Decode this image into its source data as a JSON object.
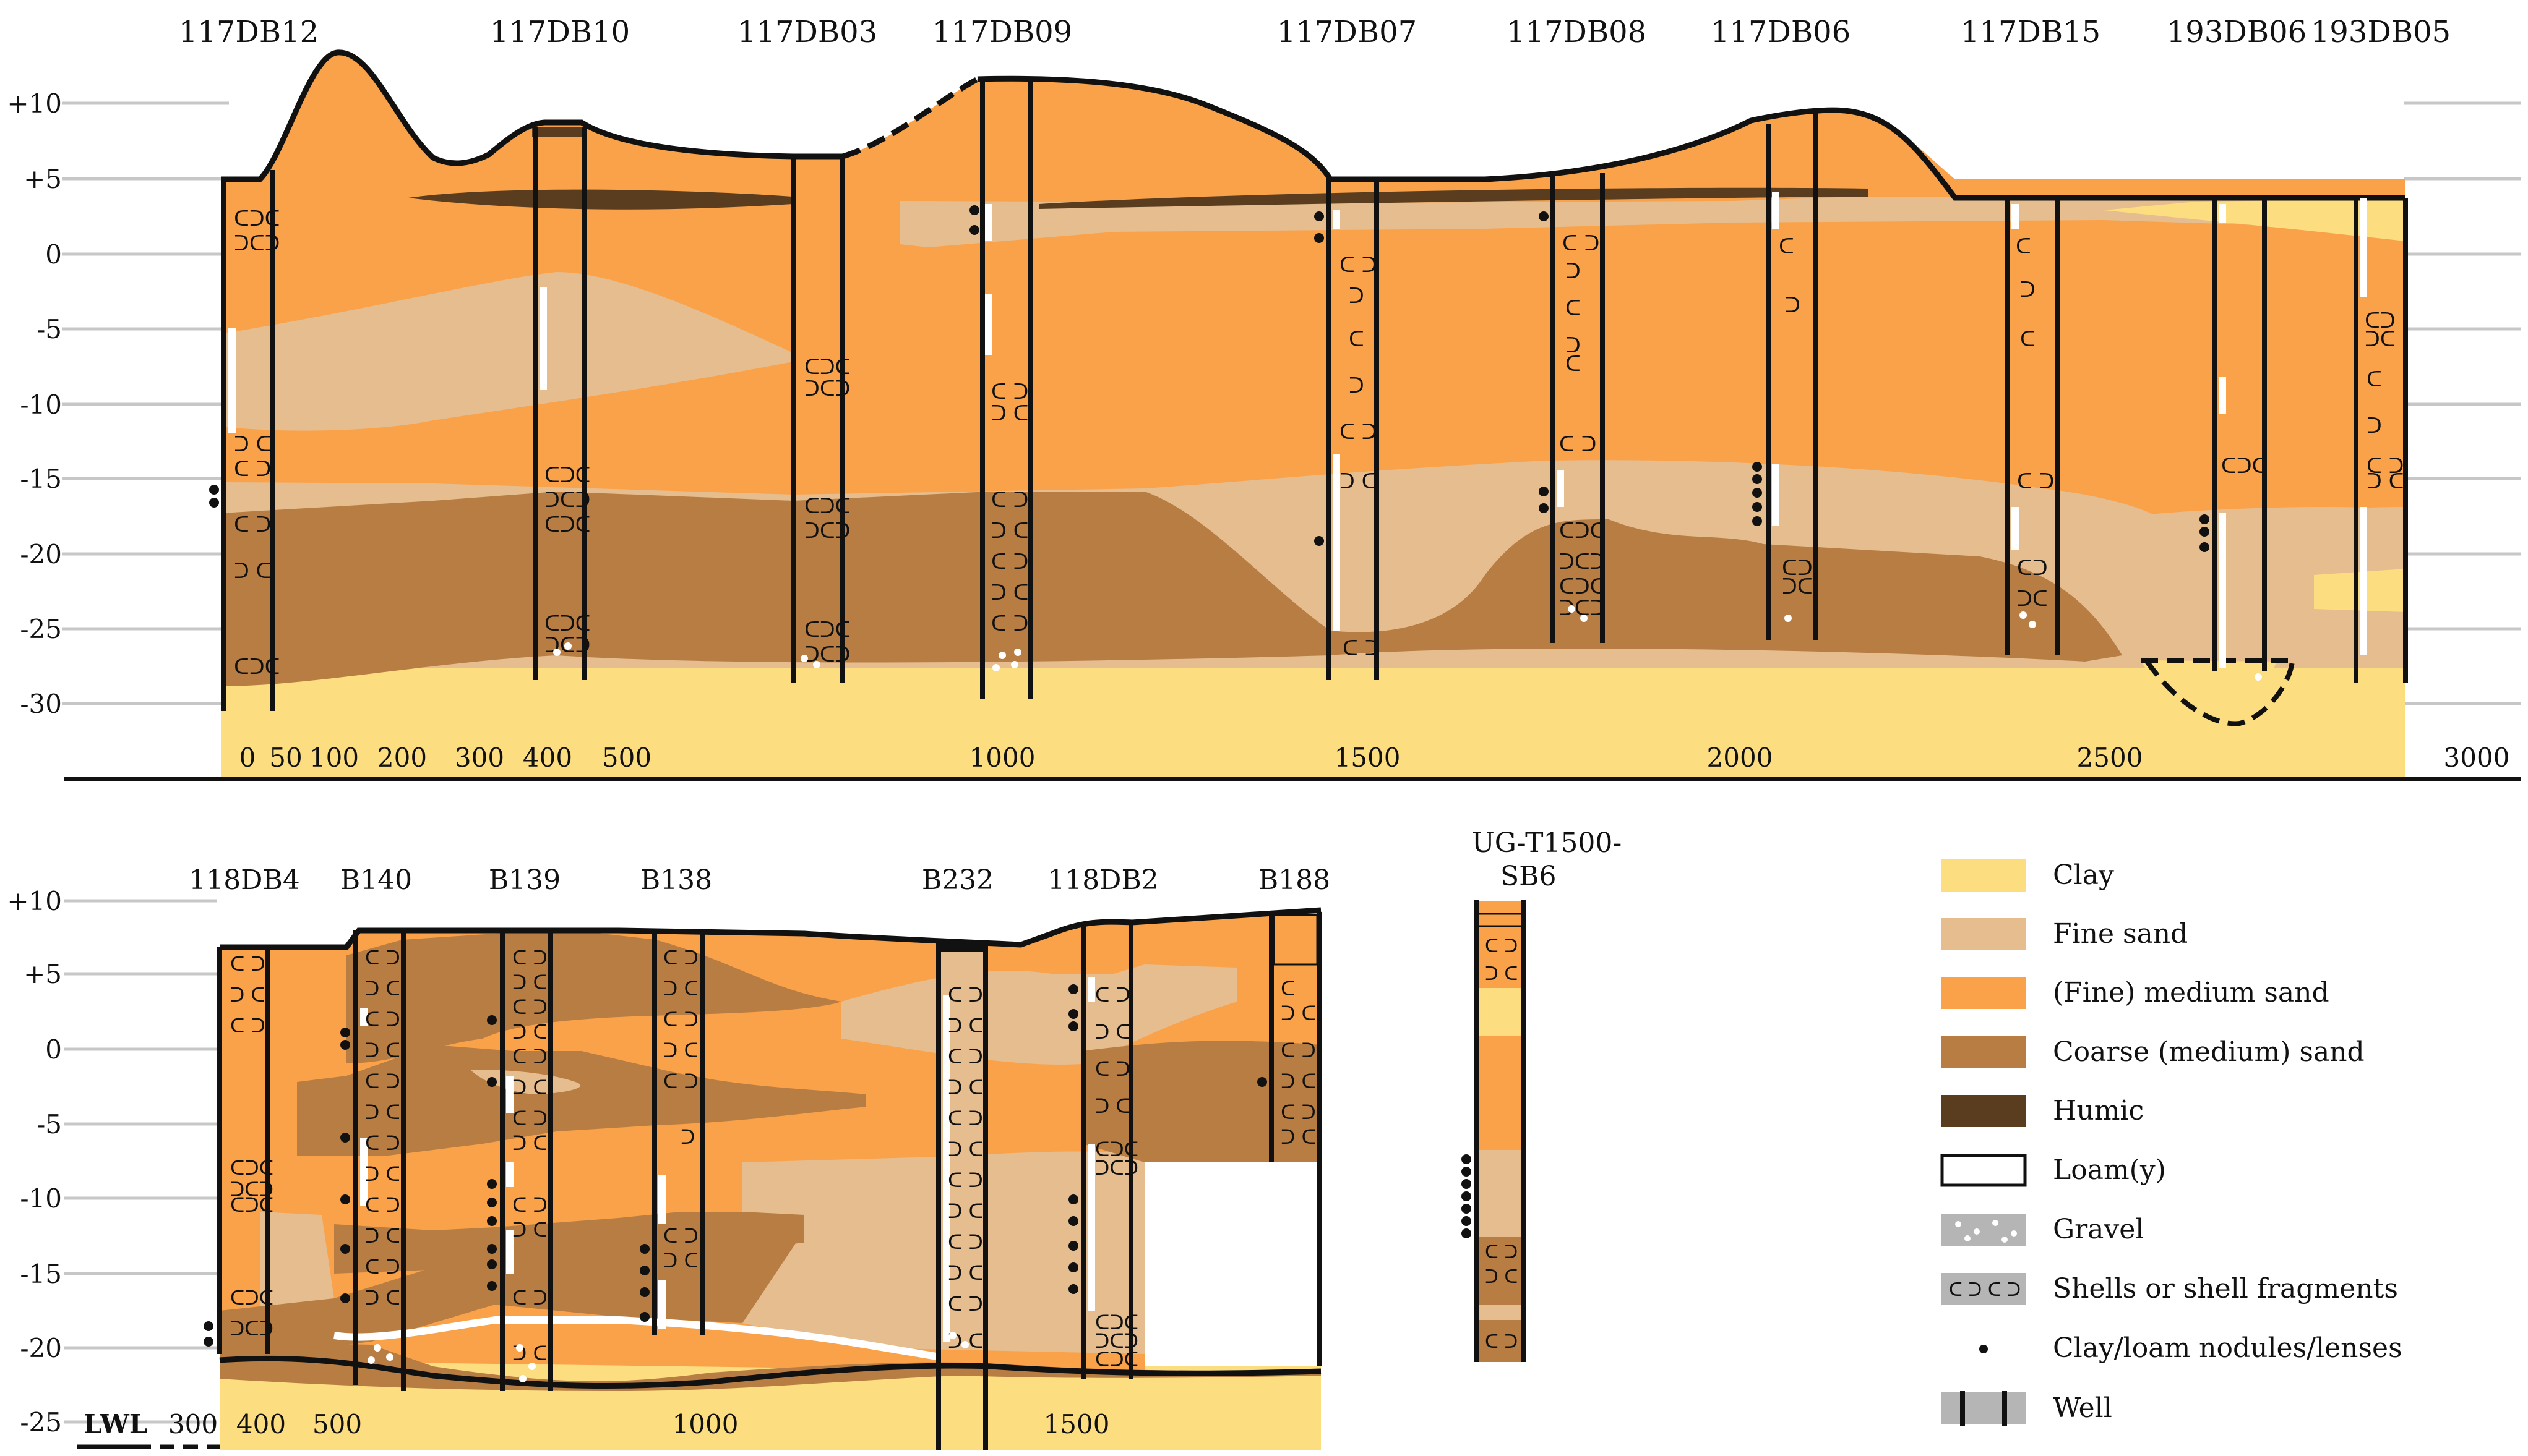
{
  "colors": {
    "clay": "#fcdd7f",
    "fine_sand": "#e6bd8f",
    "medium_sand": "#f9a24a",
    "coarse_sand": "#b87d43",
    "humic": "#5a3d1e",
    "loam": "#ffffff",
    "gravel": "#b5b5b5",
    "shells": "#b5b5b5",
    "gridline": "#c7c7c7",
    "ink": "#111111"
  },
  "top_section": {
    "wells": [
      "117DB12",
      "117DB10",
      "117DB03",
      "117DB09",
      "117DB07",
      "117DB08",
      "117DB06",
      "117DB15",
      "193DB06",
      "193DB05"
    ],
    "depth_ticks": [
      "+10",
      "+5",
      "0",
      "-5",
      "-10",
      "-15",
      "-20",
      "-25",
      "-30"
    ],
    "distance_ticks": [
      "0",
      "50",
      "100",
      "200",
      "300",
      "400",
      "500",
      "1000",
      "1500",
      "2000",
      "2500",
      "3000"
    ]
  },
  "bottom_section": {
    "wells": [
      "118DB4",
      "B140",
      "B139",
      "B138",
      "B232",
      "118DB2",
      "B188"
    ],
    "side_well_line1": "UG-T1500-",
    "side_well_line2": "SB6",
    "depth_ticks": [
      "+10",
      "+5",
      "0",
      "-5",
      "-10",
      "-15",
      "-20",
      "-25"
    ],
    "distance_ticks": [
      "300",
      "400",
      "500",
      "1000",
      "1500"
    ],
    "lwl_label": "LWL"
  },
  "legend": {
    "items": [
      {
        "label": "Clay",
        "swatch": "clay"
      },
      {
        "label": "Fine sand",
        "swatch": "fine_sand"
      },
      {
        "label": "(Fine) medium sand",
        "swatch": "medium_sand"
      },
      {
        "label": "Coarse (medium) sand",
        "swatch": "coarse_sand"
      },
      {
        "label": "Humic",
        "swatch": "humic"
      },
      {
        "label": "Loam(y)",
        "swatch": "loam"
      },
      {
        "label": "Gravel",
        "swatch": "gravel"
      },
      {
        "label": "Shells or shell fragments",
        "swatch": "shells"
      },
      {
        "label": "Clay/loam nodules/lenses",
        "swatch": "dot"
      },
      {
        "label": "Well",
        "swatch": "well"
      }
    ]
  }
}
